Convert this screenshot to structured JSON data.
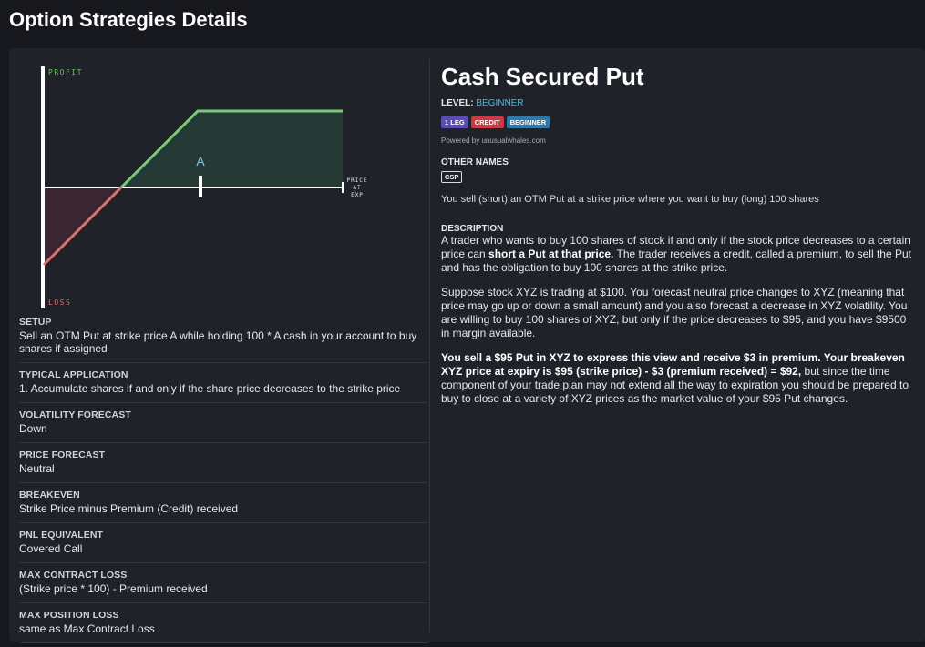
{
  "page_title": "Option Strategies Details",
  "chart": {
    "profit_label": "PROFIT",
    "loss_label": "LOSS",
    "strike_label": "A",
    "axis_label_line1": "PRICE",
    "axis_label_line2": "AT",
    "axis_label_line3": "EXP",
    "colors": {
      "profit": "#7fc97a",
      "loss": "#e07070",
      "axis": "#ffffff",
      "strike": "#7cc6e6"
    }
  },
  "sections": [
    {
      "label": "SETUP",
      "text": "Sell an OTM Put at strike price A while holding 100 * A cash in your account to buy shares if assigned"
    },
    {
      "label": "TYPICAL APPLICATION",
      "text": "1. Accumulate shares if and only if the share price decreases to the strike price"
    },
    {
      "label": "VOLATILITY FORECAST",
      "text": "Down"
    },
    {
      "label": "PRICE FORECAST",
      "text": "Neutral"
    },
    {
      "label": "BREAKEVEN",
      "text": "Strike Price minus Premium (Credit) received"
    },
    {
      "label": "PNL EQUIVALENT",
      "text": "Covered Call"
    },
    {
      "label": "MAX CONTRACT LOSS",
      "text": "(Strike price * 100) - Premium received"
    },
    {
      "label": "MAX POSITION LOSS",
      "text": "same as Max Contract Loss"
    }
  ],
  "strategy": {
    "title": "Cash Secured Put",
    "level_label": "LEVEL:",
    "level_value": "BEGINNER",
    "badges": [
      "1 LEG",
      "CREDIT",
      "BEGINNER"
    ],
    "powered_by": "Powered by unusualwhales.com",
    "other_names_label": "OTHER NAMES",
    "other_names": [
      "CSP"
    ],
    "summary": "You sell (short) an OTM Put at a strike price where you want to buy (long) 100 shares",
    "description_label": "DESCRIPTION",
    "p1_a": "A trader who wants to buy 100 shares of stock if and only if the stock price decreases to a certain price can ",
    "p1_b": "short a Put at that price.",
    "p1_c": " The trader receives a credit, called a premium, to sell the Put and has the obligation to buy 100 shares at the strike price.",
    "p2": "Suppose stock XYZ is trading at $100. You forecast neutral price changes to XYZ (meaning that price may go up or down a small amount) and you also forecast a decrease in XYZ volatility. You are willing to buy 100 shares of XYZ, but only if the price decreases to $95, and you have $9500 in margin available.",
    "p3_a": "You sell a $95 Put in XYZ to express this view and receive $3 in premium. Your breakeven XYZ price at expiry is $95 (strike price) - $3 (premium received) = $92,",
    "p3_b": " but since the time component of your trade plan may not extend all the way to expiration you should be prepared to buy to close at a variety of XYZ prices as the market value of your $95 Put changes."
  }
}
